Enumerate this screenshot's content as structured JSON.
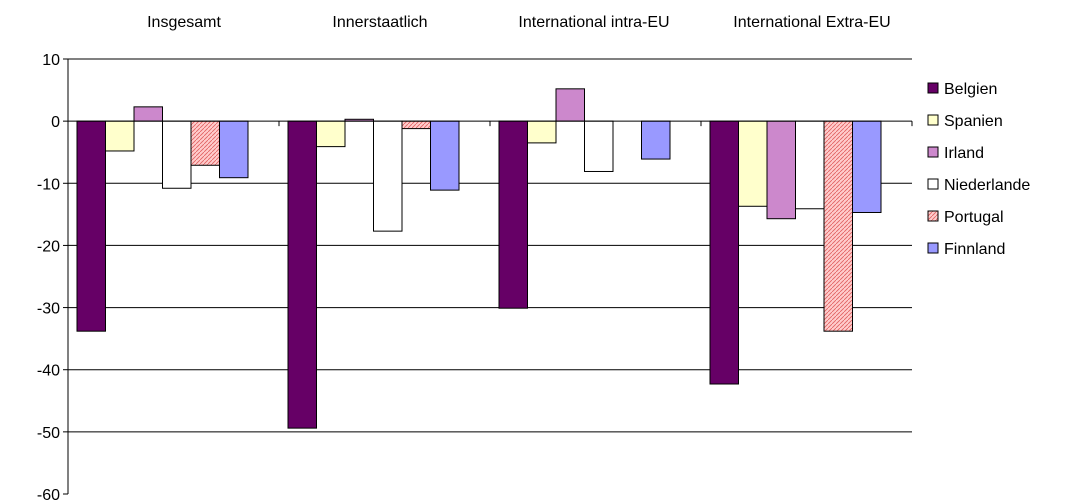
{
  "chart_data": {
    "type": "bar",
    "categories": [
      "Insgesamt",
      "Innerstaatlich",
      "International intra-EU",
      "International Extra-EU"
    ],
    "series": [
      {
        "name": "Belgien",
        "values": [
          -33.8,
          -49.4,
          -30.1,
          -42.3
        ],
        "color": "#660066",
        "pattern": "solid"
      },
      {
        "name": "Spanien",
        "values": [
          -4.8,
          -4.1,
          -3.5,
          -13.7
        ],
        "color": "#ffffcc",
        "pattern": "solid"
      },
      {
        "name": "Irland",
        "values": [
          2.3,
          0.3,
          5.2,
          -15.7
        ],
        "color": "#cc88cc",
        "pattern": "solid"
      },
      {
        "name": "Niederlande",
        "values": [
          -10.8,
          -17.7,
          -8.1,
          -14.1
        ],
        "color": "#ffffff",
        "pattern": "solid"
      },
      {
        "name": "Portugal",
        "values": [
          -7.1,
          -1.2,
          0,
          -33.8
        ],
        "color": "#ffcccc",
        "pattern": "hatched"
      },
      {
        "name": "Finnland",
        "values": [
          -9.1,
          -11.1,
          -6.1,
          -14.7
        ],
        "color": "#9999ff",
        "pattern": "solid"
      }
    ],
    "ylim": [
      -60,
      10
    ],
    "yticks": [
      "10",
      "0",
      "-10",
      "-20",
      "-30",
      "-40",
      "-50",
      "-60"
    ],
    "ytick_values": [
      10,
      0,
      -10,
      -20,
      -30,
      -40,
      -50,
      -60
    ],
    "grid": true,
    "category_labels_position": "top",
    "legend_position": "right"
  }
}
